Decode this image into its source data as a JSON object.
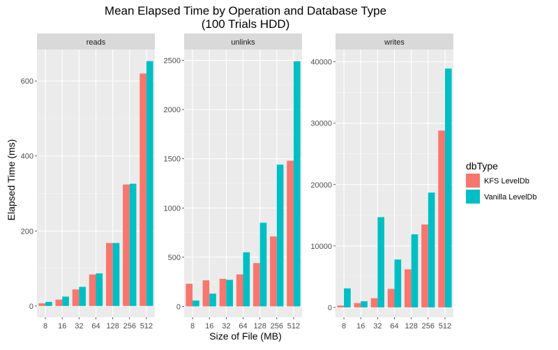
{
  "chart_data": {
    "type": "bar",
    "title": "Mean Elapsed Time by Operation and Database Type",
    "subtitle": "(100 Trials HDD)",
    "xlabel": "Size of File (MB)",
    "ylabel": "Elapsed Time (ms)",
    "categories": [
      "8",
      "16",
      "32",
      "64",
      "128",
      "256",
      "512"
    ],
    "legend": {
      "title": "dbType",
      "position": "right"
    },
    "series_colors": [
      "#F8766D",
      "#00BFC4"
    ],
    "series_names": [
      "KFS LevelDb",
      "Vanilla LevelDb"
    ],
    "grid": true,
    "panels": [
      {
        "name": "reads",
        "ylim": [
          -30,
          684
        ],
        "yticks": [
          0,
          200,
          400,
          600
        ],
        "series": [
          {
            "name": "KFS LevelDb",
            "values": [
              7,
              17,
              44,
              84,
              168,
              324,
              620
            ]
          },
          {
            "name": "Vanilla LevelDb",
            "values": [
              11,
              25,
              51,
              87,
              168,
              326,
              653
            ]
          }
        ]
      },
      {
        "name": "unlinks",
        "ylim": [
          -110,
          2610
        ],
        "yticks": [
          0,
          500,
          1000,
          1500,
          2000,
          2500
        ],
        "series": [
          {
            "name": "KFS LevelDb",
            "values": [
              230,
              265,
              280,
              325,
              440,
              710,
              1480
            ]
          },
          {
            "name": "Vanilla LevelDb",
            "values": [
              60,
              130,
              270,
              550,
              850,
              1440,
              2490
            ]
          }
        ]
      },
      {
        "name": "writes",
        "ylim": [
          -1600,
          42000
        ],
        "yticks": [
          0,
          10000,
          20000,
          30000,
          40000
        ],
        "series": [
          {
            "name": "KFS LevelDb",
            "values": [
              300,
              700,
              1500,
              3000,
              6200,
              13500,
              28800
            ]
          },
          {
            "name": "Vanilla LevelDb",
            "values": [
              3100,
              1000,
              14700,
              7800,
              11900,
              18700,
              38900
            ]
          }
        ]
      }
    ]
  }
}
